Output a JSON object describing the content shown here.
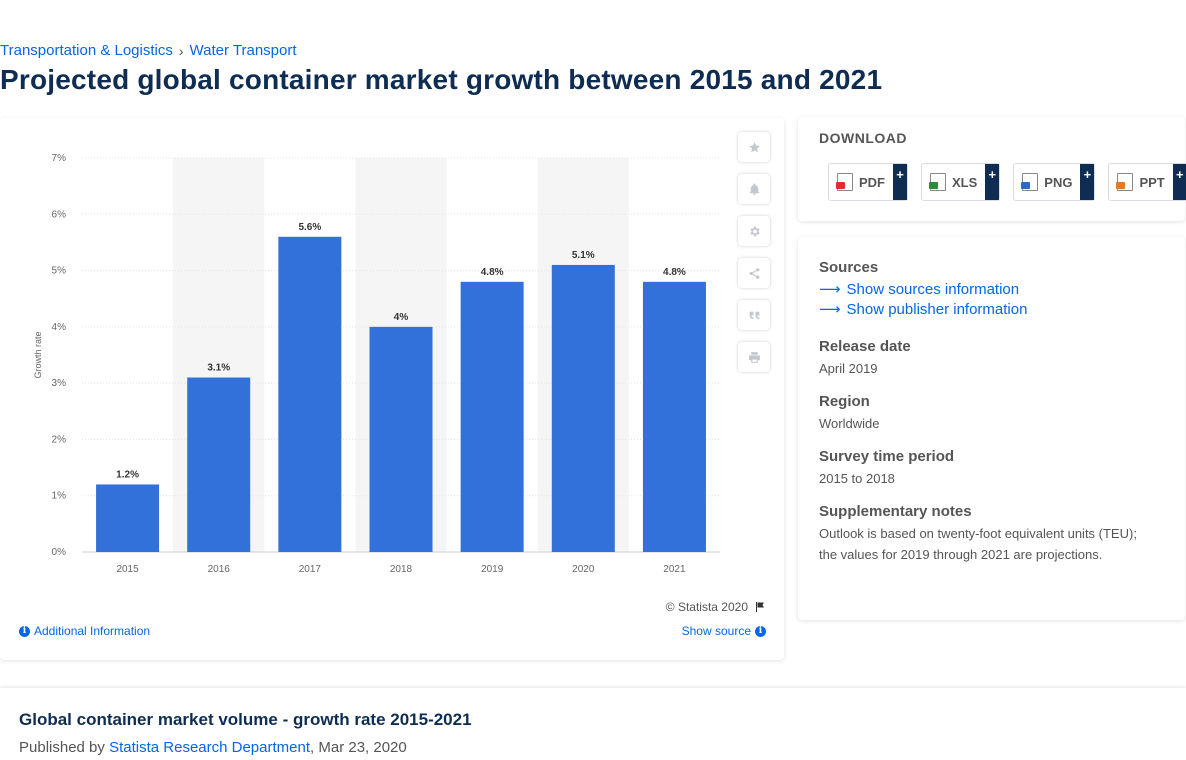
{
  "breadcrumb": {
    "items": [
      "Transportation & Logistics",
      "Water Transport"
    ],
    "separator": "›"
  },
  "page_title": "Projected global container market growth between 2015 and 2021",
  "chart_data": {
    "type": "bar",
    "categories": [
      "2015",
      "2016",
      "2017",
      "2018",
      "2019",
      "2020",
      "2021"
    ],
    "values": [
      1.2,
      3.1,
      5.6,
      4,
      4.8,
      5.1,
      4.8
    ],
    "value_labels": [
      "1.2%",
      "3.1%",
      "5.6%",
      "4%",
      "4.8%",
      "5.1%",
      "4.8%"
    ],
    "ylabel": "Growth rate",
    "ylim": [
      0,
      7
    ],
    "yticks": [
      "0%",
      "1%",
      "2%",
      "3%",
      "4%",
      "5%",
      "6%",
      "7%"
    ],
    "grid": true,
    "bar_color": "#3271d9",
    "band_color": "#f5f5f5"
  },
  "chart_tools": [
    "star-icon",
    "bell-icon",
    "gear-icon",
    "share-icon",
    "quote-icon",
    "print-icon"
  ],
  "chart_footer": {
    "copyright": "© Statista 2020",
    "additional_info": "Additional Information",
    "show_source": "Show source"
  },
  "download": {
    "title": "DOWNLOAD",
    "buttons": [
      {
        "label": "PDF",
        "color": "#d93030"
      },
      {
        "label": "XLS",
        "color": "#2e8b3a"
      },
      {
        "label": "PNG",
        "color": "#2a6bc7"
      },
      {
        "label": "PPT",
        "color": "#e07b28"
      }
    ],
    "plus": "+"
  },
  "sidebar": {
    "sources_heading": "Sources",
    "show_sources": "Show sources information",
    "show_publisher": "Show publisher information",
    "release_heading": "Release date",
    "release_value": "April 2019",
    "region_heading": "Region",
    "region_value": "Worldwide",
    "survey_heading": "Survey time period",
    "survey_value": "2015 to 2018",
    "notes_heading": "Supplementary notes",
    "notes_value": "Outlook is based on twenty-foot equivalent units (TEU); the values for 2019 through 2021 are projections."
  },
  "footer": {
    "title": "Global container market volume - growth rate 2015-2021",
    "published_by": "Published by",
    "publisher": "Statista Research Department",
    "date": ", Mar 23, 2020"
  },
  "colors": {
    "accent": "#0666e5",
    "title": "#0f2d52",
    "bar": "#3271d9",
    "dark": "#0f2d52"
  }
}
